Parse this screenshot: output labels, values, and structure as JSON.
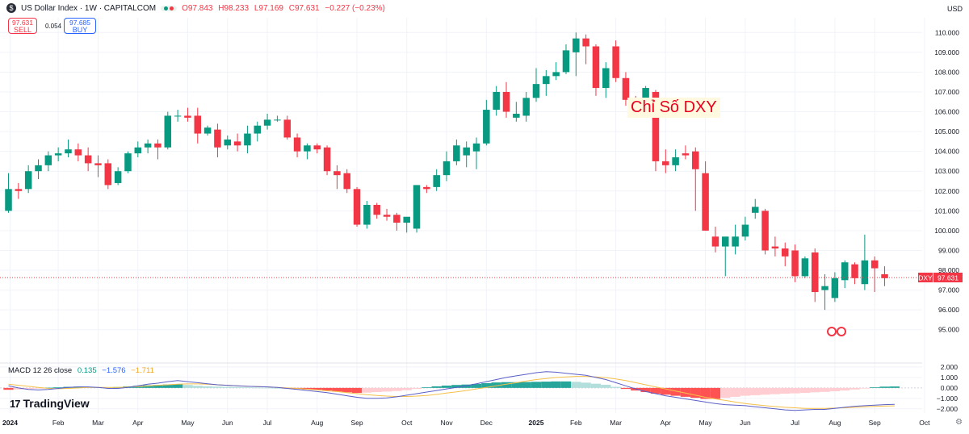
{
  "header": {
    "title": "US Dollar Index · 1W · CAPITALCOM",
    "open": "O97.843",
    "high": "H98.233",
    "low": "L97.169",
    "close": "C97.631",
    "change": "−0.227 (−0.23%)"
  },
  "trade": {
    "sell_price": "97.631",
    "sell_label": "SELL",
    "spread": "0.054",
    "buy_price": "97.685",
    "buy_label": "BUY"
  },
  "currency": "USD",
  "annotation": "Chỉ Số DXY",
  "symbol_badge": "DXY",
  "last_price": "97.631",
  "macd": {
    "label": "MACD 12 26 close",
    "hist": "0.135",
    "macd": "−1.576",
    "signal": "−1.711"
  },
  "brand": "TradingView",
  "chart_data": {
    "type": "candlestick",
    "price_ylim": [
      94.5,
      110.5
    ],
    "price_ticks": [
      110,
      109,
      108,
      107,
      106,
      105,
      104,
      103,
      102,
      101,
      100,
      99,
      98,
      97,
      96,
      95
    ],
    "macd_ylim": [
      -2.4,
      2.3
    ],
    "macd_ticks": [
      2,
      1,
      0,
      -1,
      -2
    ],
    "x_labels": [
      "2024",
      "Feb",
      "Mar",
      "Apr",
      "May",
      "Jun",
      "Jul",
      "Aug",
      "Sep",
      "Oct",
      "Nov",
      "Dec",
      "2025",
      "Feb",
      "Mar",
      "Apr",
      "May",
      "Jun",
      "Jul",
      "Aug",
      "Sep",
      "Oct"
    ],
    "x_label_week": [
      0,
      5,
      9,
      13,
      18,
      22,
      26,
      31,
      35,
      40,
      44,
      48,
      53,
      57,
      61,
      66,
      70,
      74,
      79,
      83,
      87,
      92
    ],
    "weeks": [
      {
        "o": 101.0,
        "h": 102.9,
        "l": 100.9,
        "c": 102.1
      },
      {
        "o": 102.1,
        "h": 102.4,
        "l": 101.6,
        "c": 102.0
      },
      {
        "o": 102.1,
        "h": 103.3,
        "l": 101.9,
        "c": 103.0
      },
      {
        "o": 103.0,
        "h": 103.6,
        "l": 102.6,
        "c": 103.3
      },
      {
        "o": 103.3,
        "h": 104.0,
        "l": 103.0,
        "c": 103.8
      },
      {
        "o": 103.8,
        "h": 104.2,
        "l": 103.5,
        "c": 103.9
      },
      {
        "o": 103.9,
        "h": 104.6,
        "l": 103.7,
        "c": 104.1
      },
      {
        "o": 104.1,
        "h": 104.4,
        "l": 103.5,
        "c": 103.8
      },
      {
        "o": 103.8,
        "h": 104.2,
        "l": 103.0,
        "c": 103.4
      },
      {
        "o": 103.4,
        "h": 103.8,
        "l": 102.7,
        "c": 103.3
      },
      {
        "o": 103.4,
        "h": 103.6,
        "l": 102.1,
        "c": 102.3
      },
      {
        "o": 102.4,
        "h": 103.2,
        "l": 102.3,
        "c": 103.0
      },
      {
        "o": 103.0,
        "h": 104.0,
        "l": 102.9,
        "c": 103.9
      },
      {
        "o": 103.9,
        "h": 104.5,
        "l": 103.7,
        "c": 104.2
      },
      {
        "o": 104.2,
        "h": 104.6,
        "l": 103.9,
        "c": 104.4
      },
      {
        "o": 104.4,
        "h": 104.6,
        "l": 103.6,
        "c": 104.2
      },
      {
        "o": 104.2,
        "h": 106.0,
        "l": 104.1,
        "c": 105.8
      },
      {
        "o": 105.8,
        "h": 106.1,
        "l": 105.5,
        "c": 105.8
      },
      {
        "o": 105.8,
        "h": 106.2,
        "l": 105.5,
        "c": 105.7
      },
      {
        "o": 105.8,
        "h": 106.2,
        "l": 104.4,
        "c": 104.9
      },
      {
        "o": 104.9,
        "h": 105.3,
        "l": 104.8,
        "c": 105.2
      },
      {
        "o": 105.1,
        "h": 105.4,
        "l": 103.7,
        "c": 104.2
      },
      {
        "o": 104.3,
        "h": 104.8,
        "l": 104.1,
        "c": 104.6
      },
      {
        "o": 104.5,
        "h": 104.9,
        "l": 104.0,
        "c": 104.3
      },
      {
        "o": 104.3,
        "h": 105.3,
        "l": 103.9,
        "c": 104.9
      },
      {
        "o": 104.9,
        "h": 105.5,
        "l": 104.5,
        "c": 105.3
      },
      {
        "o": 105.3,
        "h": 105.9,
        "l": 105.1,
        "c": 105.6
      },
      {
        "o": 105.6,
        "h": 105.8,
        "l": 105.5,
        "c": 105.6
      },
      {
        "o": 105.6,
        "h": 105.8,
        "l": 104.6,
        "c": 104.7
      },
      {
        "o": 104.7,
        "h": 104.9,
        "l": 103.7,
        "c": 104.0
      },
      {
        "o": 104.0,
        "h": 104.4,
        "l": 103.6,
        "c": 104.3
      },
      {
        "o": 104.3,
        "h": 104.4,
        "l": 103.9,
        "c": 104.1
      },
      {
        "o": 104.2,
        "h": 104.3,
        "l": 102.8,
        "c": 103.0
      },
      {
        "o": 103.0,
        "h": 103.3,
        "l": 102.1,
        "c": 102.8
      },
      {
        "o": 102.9,
        "h": 103.1,
        "l": 101.9,
        "c": 102.1
      },
      {
        "o": 102.1,
        "h": 102.2,
        "l": 100.2,
        "c": 100.3
      },
      {
        "o": 100.3,
        "h": 101.5,
        "l": 100.1,
        "c": 101.3
      },
      {
        "o": 101.3,
        "h": 101.4,
        "l": 100.6,
        "c": 100.8
      },
      {
        "o": 100.8,
        "h": 101.1,
        "l": 100.5,
        "c": 100.7
      },
      {
        "o": 100.8,
        "h": 100.9,
        "l": 100.0,
        "c": 100.4
      },
      {
        "o": 100.4,
        "h": 100.6,
        "l": 99.9,
        "c": 100.7
      },
      {
        "o": 100.1,
        "h": 102.3,
        "l": 99.9,
        "c": 102.3
      },
      {
        "o": 102.2,
        "h": 102.3,
        "l": 101.9,
        "c": 102.1
      },
      {
        "o": 102.2,
        "h": 103.1,
        "l": 102.0,
        "c": 102.8
      },
      {
        "o": 102.8,
        "h": 104.0,
        "l": 102.5,
        "c": 103.5
      },
      {
        "o": 103.5,
        "h": 104.6,
        "l": 103.3,
        "c": 104.3
      },
      {
        "o": 103.8,
        "h": 104.5,
        "l": 103.2,
        "c": 104.2
      },
      {
        "o": 104.0,
        "h": 104.7,
        "l": 103.1,
        "c": 104.4
      },
      {
        "o": 104.4,
        "h": 106.6,
        "l": 104.3,
        "c": 106.1
      },
      {
        "o": 106.1,
        "h": 107.3,
        "l": 105.8,
        "c": 107.0
      },
      {
        "o": 107.0,
        "h": 107.5,
        "l": 105.7,
        "c": 106.0
      },
      {
        "o": 105.7,
        "h": 106.5,
        "l": 105.5,
        "c": 105.9
      },
      {
        "o": 105.8,
        "h": 107.0,
        "l": 105.5,
        "c": 106.7
      },
      {
        "o": 106.7,
        "h": 108.2,
        "l": 106.5,
        "c": 107.4
      },
      {
        "o": 107.4,
        "h": 108.1,
        "l": 106.8,
        "c": 107.8
      },
      {
        "o": 107.8,
        "h": 108.5,
        "l": 107.6,
        "c": 108.0
      },
      {
        "o": 108.0,
        "h": 109.4,
        "l": 107.9,
        "c": 109.1
      },
      {
        "o": 109.0,
        "h": 110.0,
        "l": 107.8,
        "c": 109.7
      },
      {
        "o": 109.7,
        "h": 109.9,
        "l": 108.4,
        "c": 109.3
      },
      {
        "o": 109.3,
        "h": 109.4,
        "l": 106.8,
        "c": 107.2
      },
      {
        "o": 107.2,
        "h": 108.5,
        "l": 106.7,
        "c": 108.2
      },
      {
        "o": 109.3,
        "h": 109.6,
        "l": 107.5,
        "c": 107.7
      },
      {
        "o": 107.7,
        "h": 108.0,
        "l": 106.3,
        "c": 106.6
      },
      {
        "o": 106.6,
        "h": 106.8,
        "l": 106.2,
        "c": 106.4
      },
      {
        "o": 106.4,
        "h": 107.3,
        "l": 106.1,
        "c": 107.2
      },
      {
        "o": 107.0,
        "h": 107.1,
        "l": 103.0,
        "c": 103.5
      },
      {
        "o": 103.5,
        "h": 104.1,
        "l": 102.9,
        "c": 103.3
      },
      {
        "o": 103.3,
        "h": 104.1,
        "l": 103.0,
        "c": 103.7
      },
      {
        "o": 103.9,
        "h": 104.3,
        "l": 103.6,
        "c": 103.8
      },
      {
        "o": 104.0,
        "h": 104.2,
        "l": 101.0,
        "c": 103.1
      },
      {
        "o": 102.9,
        "h": 103.5,
        "l": 100.0,
        "c": 100.0
      },
      {
        "o": 99.7,
        "h": 100.2,
        "l": 98.9,
        "c": 99.2
      },
      {
        "o": 99.2,
        "h": 99.5,
        "l": 97.7,
        "c": 99.7
      },
      {
        "o": 99.2,
        "h": 100.3,
        "l": 98.8,
        "c": 99.7
      },
      {
        "o": 99.7,
        "h": 100.7,
        "l": 99.5,
        "c": 100.3
      },
      {
        "o": 100.9,
        "h": 101.6,
        "l": 100.6,
        "c": 101.2
      },
      {
        "o": 101.0,
        "h": 101.1,
        "l": 98.8,
        "c": 99.0
      },
      {
        "o": 99.2,
        "h": 99.7,
        "l": 98.7,
        "c": 99.1
      },
      {
        "o": 99.1,
        "h": 99.4,
        "l": 98.2,
        "c": 98.7
      },
      {
        "o": 99.0,
        "h": 99.3,
        "l": 97.4,
        "c": 97.7
      },
      {
        "o": 97.7,
        "h": 98.7,
        "l": 97.6,
        "c": 98.6
      },
      {
        "o": 98.9,
        "h": 99.1,
        "l": 96.4,
        "c": 96.9
      },
      {
        "o": 97.0,
        "h": 97.8,
        "l": 96.0,
        "c": 97.2
      },
      {
        "o": 96.6,
        "h": 97.9,
        "l": 96.4,
        "c": 97.6
      },
      {
        "o": 97.5,
        "h": 98.5,
        "l": 97.1,
        "c": 98.4
      },
      {
        "o": 98.3,
        "h": 98.4,
        "l": 97.3,
        "c": 97.6
      },
      {
        "o": 97.3,
        "h": 99.8,
        "l": 97.0,
        "c": 98.5
      },
      {
        "o": 98.5,
        "h": 98.7,
        "l": 96.9,
        "c": 98.1
      },
      {
        "o": 97.8,
        "h": 98.2,
        "l": 97.2,
        "c": 97.6
      }
    ],
    "histogram": [
      -0.18,
      -0.15,
      -0.1,
      -0.05,
      0.02,
      0.05,
      0.1,
      0.12,
      0.1,
      0.05,
      0.02,
      0.08,
      0.15,
      0.2,
      0.25,
      0.28,
      0.32,
      0.35,
      0.28,
      0.2,
      0.15,
      0.12,
      0.1,
      0.08,
      0.05,
      0.03,
      0.02,
      0.0,
      -0.05,
      -0.1,
      -0.15,
      -0.18,
      -0.25,
      -0.35,
      -0.42,
      -0.48,
      -0.45,
      -0.4,
      -0.35,
      -0.3,
      -0.22,
      -0.1,
      0.05,
      0.15,
      0.22,
      0.28,
      0.32,
      0.38,
      0.45,
      0.52,
      0.55,
      0.55,
      0.56,
      0.58,
      0.6,
      0.62,
      0.62,
      0.58,
      0.5,
      0.4,
      0.3,
      0.1,
      -0.1,
      -0.25,
      -0.4,
      -0.55,
      -0.65,
      -0.75,
      -0.85,
      -0.95,
      -1.05,
      -1.05,
      -0.95,
      -0.85,
      -0.75,
      -0.7,
      -0.65,
      -0.6,
      -0.55,
      -0.52,
      -0.48,
      -0.42,
      -0.38,
      -0.32,
      -0.25,
      -0.15,
      -0.05,
      0.05,
      0.12,
      0.135
    ],
    "macd_line": [
      0.2,
      0.0,
      -0.15,
      -0.2,
      -0.15,
      -0.05,
      0.05,
      0.1,
      0.1,
      0.05,
      -0.05,
      -0.05,
      0.05,
      0.2,
      0.35,
      0.45,
      0.6,
      0.7,
      0.6,
      0.5,
      0.4,
      0.3,
      0.25,
      0.2,
      0.15,
      0.12,
      0.1,
      0.05,
      -0.05,
      -0.15,
      -0.25,
      -0.35,
      -0.45,
      -0.6,
      -0.75,
      -0.9,
      -1.0,
      -1.0,
      -0.95,
      -0.85,
      -0.7,
      -0.55,
      -0.4,
      -0.25,
      -0.1,
      0.05,
      0.2,
      0.4,
      0.6,
      0.8,
      1.0,
      1.15,
      1.3,
      1.45,
      1.55,
      1.5,
      1.4,
      1.3,
      1.2,
      1.0,
      0.8,
      0.5,
      0.2,
      -0.1,
      -0.35,
      -0.55,
      -0.75,
      -0.9,
      -1.05,
      -1.2,
      -1.35,
      -1.5,
      -1.6,
      -1.65,
      -1.7,
      -1.8,
      -1.9,
      -2.0,
      -2.1,
      -2.15,
      -2.1,
      -2.05,
      -2.05,
      -1.95,
      -1.85,
      -1.75,
      -1.7,
      -1.65,
      -1.6,
      -1.576
    ],
    "signal_line": [
      0.35,
      0.25,
      0.15,
      0.05,
      -0.05,
      -0.08,
      -0.05,
      0.0,
      0.05,
      0.05,
      0.05,
      0.05,
      0.08,
      0.12,
      0.18,
      0.25,
      0.3,
      0.35,
      0.38,
      0.38,
      0.35,
      0.3,
      0.25,
      0.2,
      0.15,
      0.12,
      0.1,
      0.05,
      0.0,
      -0.05,
      -0.12,
      -0.2,
      -0.28,
      -0.35,
      -0.45,
      -0.55,
      -0.65,
      -0.72,
      -0.78,
      -0.82,
      -0.82,
      -0.78,
      -0.72,
      -0.62,
      -0.5,
      -0.38,
      -0.25,
      -0.1,
      0.05,
      0.2,
      0.35,
      0.5,
      0.65,
      0.8,
      0.9,
      1.0,
      1.05,
      1.1,
      1.1,
      1.05,
      0.98,
      0.85,
      0.7,
      0.5,
      0.3,
      0.1,
      -0.1,
      -0.3,
      -0.5,
      -0.7,
      -0.9,
      -1.05,
      -1.2,
      -1.35,
      -1.5,
      -1.6,
      -1.7,
      -1.78,
      -1.85,
      -1.9,
      -1.95,
      -1.95,
      -1.95,
      -1.93,
      -1.9,
      -1.85,
      -1.8,
      -1.77,
      -1.74,
      -1.711
    ]
  }
}
